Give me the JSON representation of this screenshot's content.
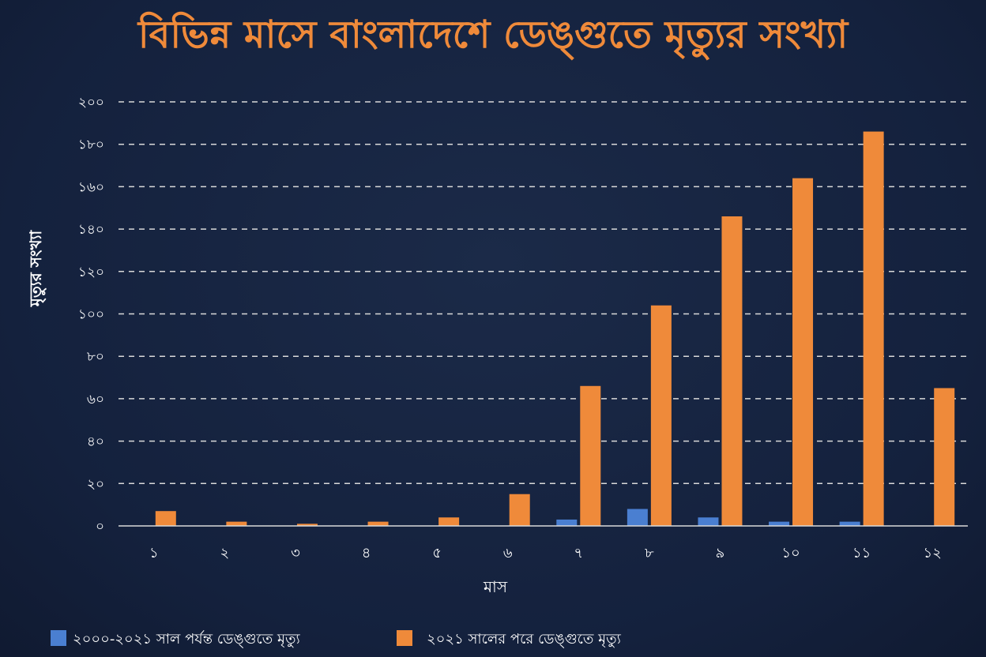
{
  "colors": {
    "background": "#14213d",
    "series_before": "#4a7fd1",
    "series_after": "#ef8a3a",
    "title": "#ef8a3a",
    "grid": "#d9d9d9",
    "text": "#ffffff"
  },
  "chart_data": {
    "type": "bar",
    "title": "বিভিন্ন মাসে বাংলাদেশে ডেঙ্গুতে মৃত্যুর সংখ্যা",
    "xlabel": "মাস",
    "ylabel": "মৃত্যুর সংখ্যা",
    "ylim": [
      0,
      200
    ],
    "yticks": [
      0,
      20,
      40,
      60,
      80,
      100,
      120,
      140,
      160,
      180,
      200
    ],
    "ytick_labels": [
      "০",
      "২০",
      "৪০",
      "৬০",
      "৮০",
      "১০০",
      "১২০",
      "১৪০",
      "১৬০",
      "১৮০",
      "২০০"
    ],
    "categories": [
      "১",
      "২",
      "৩",
      "৪",
      "৫",
      "৬",
      "৭",
      "৮",
      "৯",
      "১০",
      "১১",
      "১২"
    ],
    "grid": true,
    "legend_position": "bottom-left",
    "series": [
      {
        "name": "২০০০-২০২১ সাল পর্যন্ত ডেঙ্গুতে মৃত্যু",
        "values": [
          0,
          0,
          0,
          0,
          0,
          0,
          3,
          8,
          4,
          2,
          2,
          0
        ]
      },
      {
        "name": "২০২১ সালের পরে ডেঙ্গুতে মৃত্যু",
        "values": [
          7,
          2,
          1,
          2,
          4,
          15,
          66,
          104,
          146,
          164,
          186,
          65
        ]
      }
    ]
  }
}
